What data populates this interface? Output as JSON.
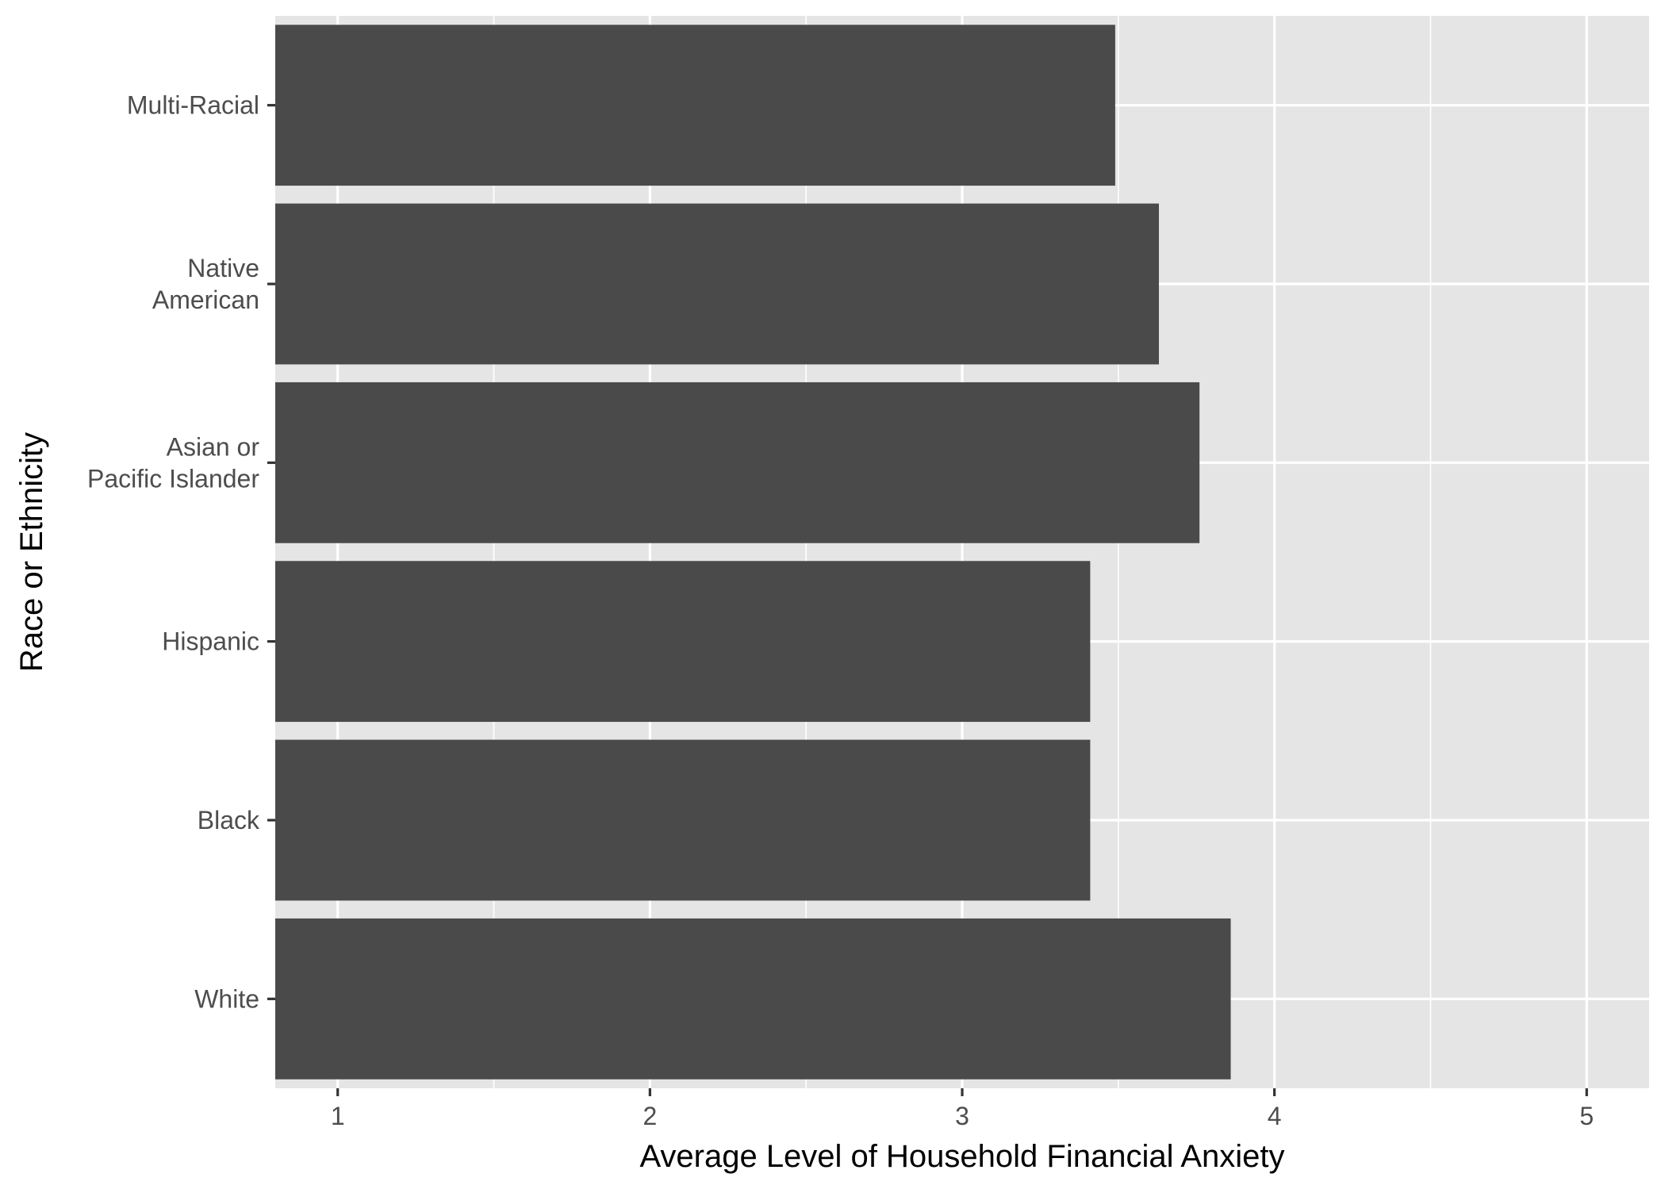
{
  "chart_data": {
    "type": "bar",
    "orientation": "horizontal",
    "categories": [
      "White",
      "Black",
      "Hispanic",
      "Asian or\nPacific Islander",
      "Native\nAmerican",
      "Multi-Racial"
    ],
    "values": [
      3.86,
      3.41,
      3.41,
      3.76,
      3.63,
      3.49
    ],
    "bar_color": "#4a4a4a",
    "panel_color": "#e5e5e5",
    "xlabel": "Average Level of Household Financial Anxiety",
    "ylabel": "Race or Ethnicity",
    "xticks": [
      1,
      2,
      3,
      4,
      5
    ],
    "xlim": [
      0.8,
      5.2
    ],
    "grid": true,
    "legend": "none"
  }
}
